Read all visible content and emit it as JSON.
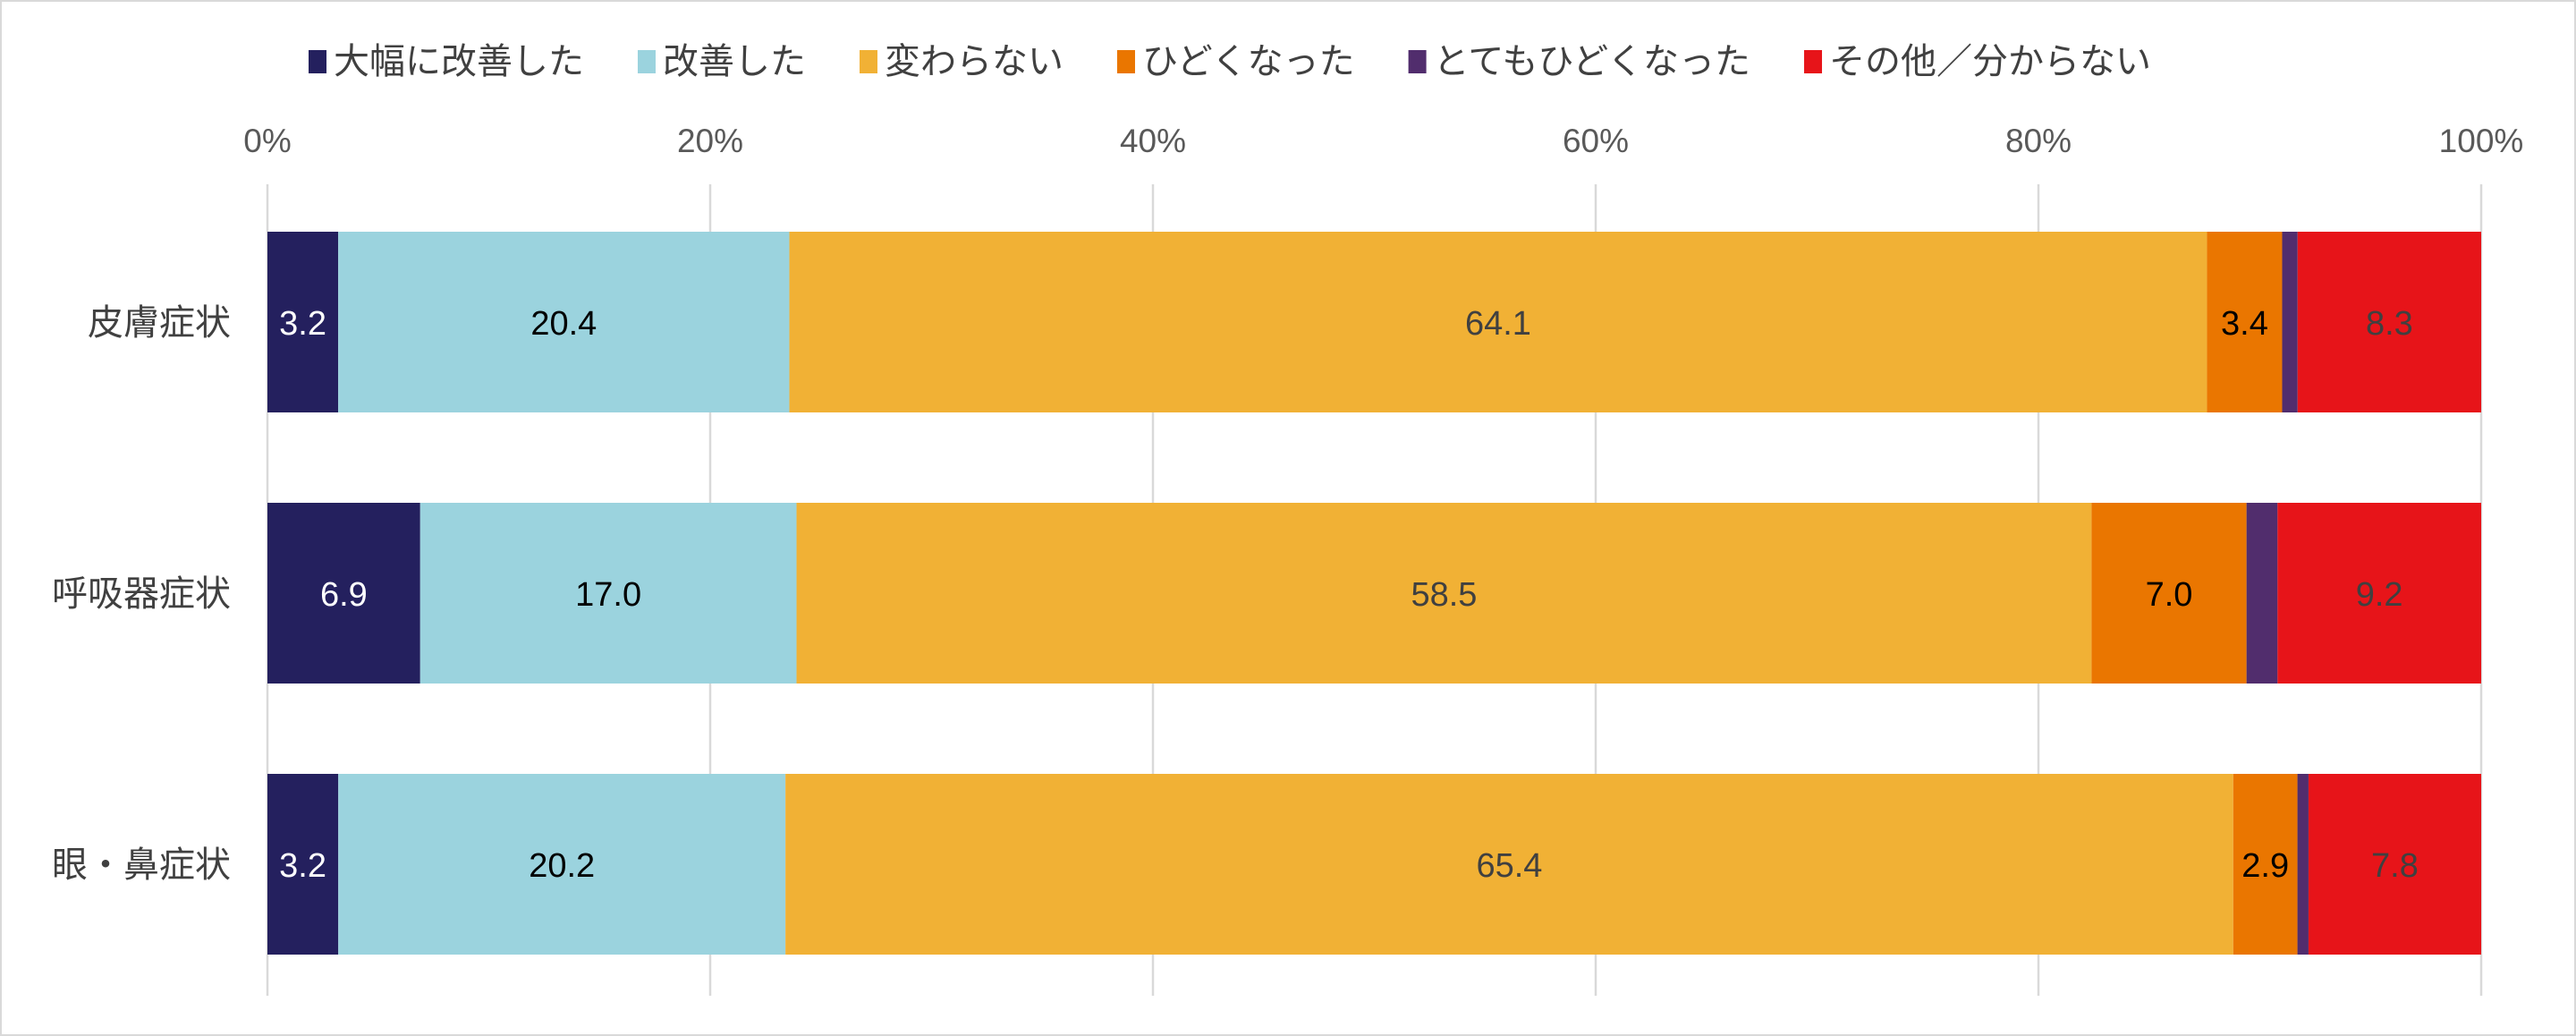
{
  "chart_data": {
    "type": "bar",
    "orientation": "horizontal",
    "stacked": "percent",
    "categories": [
      "皮膚症状",
      "呼吸器症状",
      "眼・鼻症状"
    ],
    "series": [
      {
        "name": "大幅に改善した",
        "color": "#24205e",
        "label_color": "#ffffff",
        "values": [
          3.2,
          6.9,
          3.2
        ]
      },
      {
        "name": "改善した",
        "color": "#9bd3de",
        "label_color": "#000000",
        "values": [
          20.4,
          17.0,
          20.2
        ]
      },
      {
        "name": "変わらない",
        "color": "#f1b135",
        "label_color": "#404040",
        "values": [
          64.1,
          58.5,
          65.4
        ]
      },
      {
        "name": "ひどくなった",
        "color": "#ea7600",
        "label_color": "#000000",
        "values": [
          3.4,
          7.0,
          2.9
        ]
      },
      {
        "name": "とてもひどくなった",
        "color": "#512d6d",
        "label_color": "#404040",
        "values": [
          0.7,
          1.4,
          0.5
        ]
      },
      {
        "name": "その他／分からない",
        "color": "#e71419",
        "label_color": "#404040",
        "values": [
          8.3,
          9.2,
          7.8
        ]
      }
    ],
    "xlim": [
      0,
      100
    ],
    "xticks": [
      "0%",
      "20%",
      "40%",
      "60%",
      "80%",
      "100%"
    ],
    "grid": true,
    "legend": "top",
    "xaxis_position": "top"
  }
}
